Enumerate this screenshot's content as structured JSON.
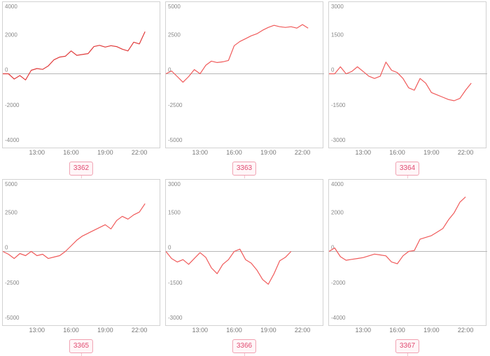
{
  "chart_data": [
    {
      "type": "line",
      "label": "3362",
      "ylim": [
        -4000,
        4000
      ],
      "yticks": [
        "4000",
        "2000",
        "0",
        "-2000",
        "-4000"
      ],
      "xticks": [
        "13:00",
        "16:00",
        "19:00",
        "22:00"
      ],
      "x": [
        10.0,
        10.5,
        11.0,
        11.5,
        12.0,
        12.5,
        13.0,
        13.5,
        14.0,
        14.5,
        15.0,
        15.5,
        16.0,
        16.5,
        17.0,
        17.5,
        18.0,
        18.5,
        19.0,
        19.5,
        20.0,
        20.5,
        21.0,
        21.5,
        22.0,
        22.5,
        23.0,
        23.5
      ],
      "values": [
        0,
        0,
        -300,
        -100,
        -350,
        200,
        300,
        250,
        450,
        800,
        950,
        1000,
        1300,
        1050,
        1100,
        1150,
        1550,
        1620,
        1520,
        1600,
        1550,
        1400,
        1300,
        1800,
        1700,
        2400,
        null,
        null
      ],
      "color": "#e03a3a"
    },
    {
      "type": "line",
      "label": "3363",
      "ylim": [
        -5000,
        5000
      ],
      "yticks": [
        "5000",
        "2500",
        "0",
        "-2500",
        "-5000"
      ],
      "xticks": [
        "13:00",
        "16:00",
        "19:00",
        "22:00"
      ],
      "x": [
        10.0,
        10.5,
        11.0,
        11.5,
        12.0,
        12.5,
        13.0,
        13.5,
        14.0,
        14.5,
        15.0,
        15.5,
        16.0,
        16.5,
        17.0,
        17.5,
        18.0,
        18.5,
        19.0,
        19.5,
        20.0,
        20.5,
        21.0,
        21.5,
        22.0,
        22.5,
        23.0,
        23.5
      ],
      "values": [
        0,
        200,
        -200,
        -600,
        -200,
        300,
        0,
        600,
        900,
        800,
        850,
        950,
        2000,
        2300,
        2500,
        2700,
        2850,
        3100,
        3300,
        3450,
        3350,
        3300,
        3350,
        3250,
        3500,
        3250,
        null,
        null
      ],
      "color": "#f05a5a"
    },
    {
      "type": "line",
      "label": "3364",
      "ylim": [
        -3000,
        3000
      ],
      "yticks": [
        "3000",
        "1500",
        "0",
        "-1500",
        "-3000"
      ],
      "xticks": [
        "13:00",
        "16:00",
        "19:00",
        "22:00"
      ],
      "x": [
        10.0,
        10.5,
        11.0,
        11.5,
        12.0,
        12.5,
        13.0,
        13.5,
        14.0,
        14.5,
        15.0,
        15.5,
        16.0,
        16.5,
        17.0,
        17.5,
        18.0,
        18.5,
        19.0,
        19.5,
        20.0,
        20.5,
        21.0,
        21.5,
        22.0,
        22.5,
        23.0,
        23.5
      ],
      "values": [
        0,
        0,
        300,
        0,
        100,
        300,
        100,
        -100,
        -200,
        -100,
        500,
        150,
        50,
        -200,
        -600,
        -700,
        -200,
        -400,
        -800,
        -900,
        -1000,
        -1100,
        -1150,
        -1050,
        -700,
        -400,
        null,
        null
      ],
      "color": "#f05a5a"
    },
    {
      "type": "line",
      "label": "3365",
      "ylim": [
        -5000,
        5000
      ],
      "yticks": [
        "5000",
        "2500",
        "0",
        "-2500",
        "-5000"
      ],
      "xticks": [
        "13:00",
        "16:00",
        "19:00",
        "22:00"
      ],
      "x": [
        10.0,
        10.5,
        11.0,
        11.5,
        12.0,
        12.5,
        13.0,
        13.5,
        14.0,
        14.5,
        15.0,
        15.5,
        16.0,
        16.5,
        17.0,
        17.5,
        18.0,
        18.5,
        19.0,
        19.5,
        20.0,
        20.5,
        21.0,
        21.5,
        22.0,
        22.5,
        23.0,
        23.5
      ],
      "values": [
        0,
        -200,
        -500,
        -150,
        -300,
        0,
        -300,
        -200,
        -500,
        -400,
        -300,
        0,
        400,
        800,
        1100,
        1300,
        1500,
        1700,
        1900,
        1600,
        2200,
        2500,
        2300,
        2600,
        2800,
        3400,
        null,
        null
      ],
      "color": "#f05a5a"
    },
    {
      "type": "line",
      "label": "3366",
      "ylim": [
        -3000,
        3000
      ],
      "yticks": [
        "3000",
        "1500",
        "0",
        "-1500",
        "-3000"
      ],
      "xticks": [
        "13:00",
        "16:00",
        "19:00",
        "22:00"
      ],
      "x": [
        10.0,
        10.5,
        11.0,
        11.5,
        12.0,
        12.5,
        13.0,
        13.5,
        14.0,
        14.5,
        15.0,
        15.5,
        16.0,
        16.5,
        17.0,
        17.5,
        18.0,
        18.5,
        19.0,
        19.5,
        20.0,
        20.5,
        21.0,
        21.5,
        22.0,
        22.5,
        23.0,
        23.5
      ],
      "values": [
        0,
        -300,
        -450,
        -350,
        -550,
        -300,
        -50,
        -250,
        -700,
        -950,
        -550,
        -350,
        0,
        100,
        -350,
        -500,
        -800,
        -1200,
        -1400,
        -950,
        -400,
        -250,
        0,
        null,
        null,
        null,
        null,
        null
      ],
      "color": "#f05a5a"
    },
    {
      "type": "line",
      "label": "3367",
      "ylim": [
        -4000,
        4000
      ],
      "yticks": [
        "4000",
        "2000",
        "0",
        "-2000",
        "-4000"
      ],
      "xticks": [
        "13:00",
        "16:00",
        "19:00",
        "22:00"
      ],
      "x": [
        10.0,
        10.5,
        11.0,
        11.5,
        12.0,
        12.5,
        13.0,
        13.5,
        14.0,
        14.5,
        15.0,
        15.5,
        16.0,
        16.5,
        17.0,
        17.5,
        18.0,
        18.5,
        19.0,
        19.5,
        20.0,
        20.5,
        21.0,
        21.5,
        22.0,
        22.5,
        23.0,
        23.5
      ],
      "values": [
        0,
        200,
        -300,
        -500,
        -450,
        -400,
        -350,
        -250,
        -150,
        -200,
        -250,
        -600,
        -700,
        -250,
        0,
        50,
        700,
        800,
        900,
        1100,
        1300,
        1800,
        2200,
        2800,
        3100,
        null,
        null,
        null
      ],
      "color": "#f05a5a"
    }
  ]
}
